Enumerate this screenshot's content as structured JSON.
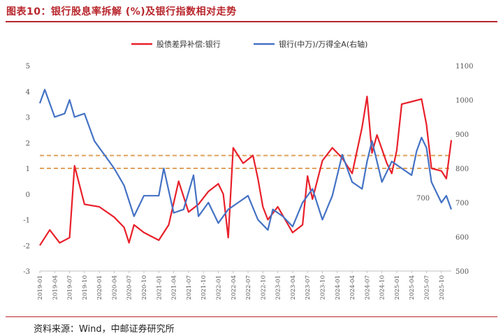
{
  "header": {
    "title": "图表10：银行股息率拆解 (%)及银行指数相对走势"
  },
  "footer": {
    "source": "资料来源：Wind，中邮证券研究所"
  },
  "colors": {
    "red": "#e8202a",
    "blue": "#4472c4",
    "ref": "#e0a25e",
    "title": "#b8262c"
  },
  "chart_data": {
    "type": "line",
    "series": [
      {
        "name": "股债差异补偿:银行",
        "axis": "left",
        "x": [
          "2019-01",
          "2019-03",
          "2019-05",
          "2019-07",
          "2019-08",
          "2019-10",
          "2020-01",
          "2020-04",
          "2020-06",
          "2020-07",
          "2020-08",
          "2020-10",
          "2021-01",
          "2021-03",
          "2021-05",
          "2021-07",
          "2021-09",
          "2021-11",
          "2022-01",
          "2022-02",
          "2022-03",
          "2022-04",
          "2022-06",
          "2022-08",
          "2022-09",
          "2022-10",
          "2022-11",
          "2023-01",
          "2023-04",
          "2023-06",
          "2023-07",
          "2023-08",
          "2023-10",
          "2023-12",
          "2024-02",
          "2024-04",
          "2024-06",
          "2024-07",
          "2024-08",
          "2024-09",
          "2024-11",
          "2024-12",
          "2025-01",
          "2025-02",
          "2025-04",
          "2025-06",
          "2025-07",
          "2025-08",
          "2025-10",
          "2025-11",
          "2025-12"
        ],
        "values": [
          -2.0,
          -1.4,
          -1.9,
          -1.7,
          1.1,
          -0.4,
          -0.5,
          -0.9,
          -1.3,
          -1.9,
          -1.2,
          -1.5,
          -1.8,
          -1.2,
          0.5,
          -0.7,
          -0.4,
          0.1,
          0.4,
          0.0,
          -1.7,
          1.8,
          1.2,
          1.5,
          0.6,
          -0.5,
          -1.0,
          -0.5,
          -1.5,
          -1.2,
          0.7,
          -0.2,
          1.3,
          1.8,
          1.4,
          0.8,
          2.6,
          3.8,
          1.6,
          2.3,
          1.2,
          0.8,
          1.7,
          3.5,
          3.6,
          3.7,
          2.7,
          1.0,
          0.9,
          0.6,
          2.1
        ]
      },
      {
        "name": "银行(中万)/万得全A(右轴)",
        "axis": "right",
        "x": [
          "2019-01",
          "2019-02",
          "2019-04",
          "2019-06",
          "2019-07",
          "2019-08",
          "2019-10",
          "2019-12",
          "2020-02",
          "2020-04",
          "2020-06",
          "2020-08",
          "2020-10",
          "2021-01",
          "2021-02",
          "2021-04",
          "2021-06",
          "2021-08",
          "2021-09",
          "2021-11",
          "2022-01",
          "2022-03",
          "2022-05",
          "2022-07",
          "2022-09",
          "2022-11",
          "2022-12",
          "2023-02",
          "2023-04",
          "2023-06",
          "2023-08",
          "2023-10",
          "2023-12",
          "2024-02",
          "2024-04",
          "2024-06",
          "2024-07",
          "2024-08",
          "2024-10",
          "2024-12",
          "2025-02",
          "2025-04",
          "2025-05",
          "2025-06",
          "2025-07",
          "2025-08",
          "2025-10",
          "2025-11",
          "2025-12"
        ],
        "values": [
          990,
          1030,
          950,
          960,
          1000,
          950,
          960,
          880,
          840,
          800,
          750,
          660,
          720,
          720,
          800,
          670,
          680,
          780,
          660,
          700,
          640,
          680,
          700,
          720,
          650,
          620,
          680,
          660,
          630,
          700,
          740,
          650,
          720,
          840,
          760,
          740,
          820,
          880,
          760,
          820,
          800,
          780,
          850,
          890,
          860,
          760,
          700,
          720,
          680
        ]
      }
    ],
    "y_left": {
      "ticks": [
        5,
        4,
        3,
        2,
        1,
        0,
        -1,
        -2,
        -3
      ],
      "ylim": [
        -3,
        5
      ]
    },
    "y_right": {
      "ticks": [
        1100,
        1000,
        900,
        800,
        700,
        600,
        500
      ],
      "ylim": [
        500,
        1100
      ]
    },
    "x_ticks": [
      "2019-01",
      "2019-04",
      "2019-07",
      "2019-10",
      "2020-01",
      "2020-04",
      "2020-07",
      "2020-10",
      "2021-01",
      "2021-04",
      "2021-07",
      "2021-10",
      "2022-01",
      "2022-04",
      "2022-07",
      "2022-10",
      "2023-01",
      "2023-04",
      "2023-07",
      "2023-10",
      "2024-01",
      "2024-04",
      "2024-07",
      "2024-10",
      "2025-01",
      "2025-04",
      "2025-07",
      "2025-10"
    ],
    "reference_lines": [
      1.5,
      1.0
    ],
    "annotations": [
      {
        "text": "700"
      }
    ],
    "legend_position": "top",
    "grid": false
  }
}
